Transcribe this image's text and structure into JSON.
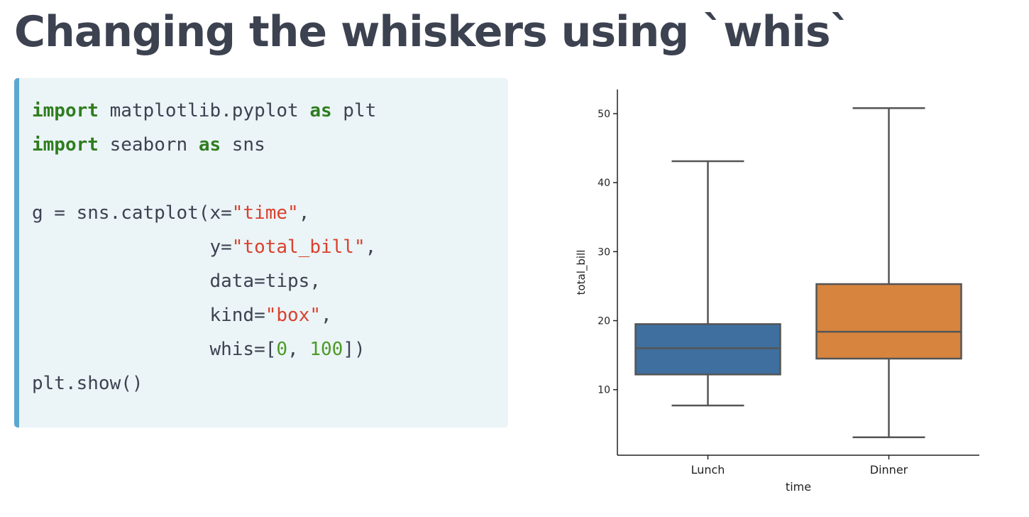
{
  "slide": {
    "title": "Changing the whiskers using `whis`"
  },
  "code": {
    "lines": [
      [
        {
          "t": "import",
          "c": "kw"
        },
        {
          "t": " matplotlib.pyplot ",
          "c": "plain"
        },
        {
          "t": "as",
          "c": "kw"
        },
        {
          "t": " plt",
          "c": "plain"
        }
      ],
      [
        {
          "t": "import",
          "c": "kw"
        },
        {
          "t": " seaborn ",
          "c": "plain"
        },
        {
          "t": "as",
          "c": "kw"
        },
        {
          "t": " sns",
          "c": "plain"
        }
      ],
      [],
      [
        {
          "t": "g = sns.catplot(x=",
          "c": "plain"
        },
        {
          "t": "\"time\"",
          "c": "str"
        },
        {
          "t": ",",
          "c": "plain"
        }
      ],
      [
        {
          "t": "                y=",
          "c": "plain"
        },
        {
          "t": "\"total_bill\"",
          "c": "str"
        },
        {
          "t": ",",
          "c": "plain"
        }
      ],
      [
        {
          "t": "                data=tips,",
          "c": "plain"
        }
      ],
      [
        {
          "t": "                kind=",
          "c": "plain"
        },
        {
          "t": "\"box\"",
          "c": "str"
        },
        {
          "t": ",",
          "c": "plain"
        }
      ],
      [
        {
          "t": "                whis=[",
          "c": "plain"
        },
        {
          "t": "0",
          "c": "num"
        },
        {
          "t": ", ",
          "c": "plain"
        },
        {
          "t": "100",
          "c": "num"
        },
        {
          "t": "])",
          "c": "plain"
        }
      ],
      [
        {
          "t": "plt.show()",
          "c": "plain"
        }
      ]
    ],
    "gap_before_line": 8
  },
  "chart_data": {
    "type": "box",
    "categories": [
      "Lunch",
      "Dinner"
    ],
    "boxes": [
      {
        "category": "Lunch",
        "min": 7.7,
        "q1": 12.2,
        "median": 16.0,
        "q3": 19.5,
        "max": 43.1,
        "color": "#3e6f9e"
      },
      {
        "category": "Dinner",
        "min": 3.1,
        "q1": 14.5,
        "median": 18.4,
        "q3": 25.3,
        "max": 50.8,
        "color": "#d6843e"
      }
    ],
    "xlabel": "time",
    "ylabel": "total_bill",
    "yticks": [
      10,
      20,
      30,
      40,
      50
    ],
    "ylim": [
      0.5,
      53.5
    ],
    "grid": false,
    "edge_color": "#555555"
  }
}
